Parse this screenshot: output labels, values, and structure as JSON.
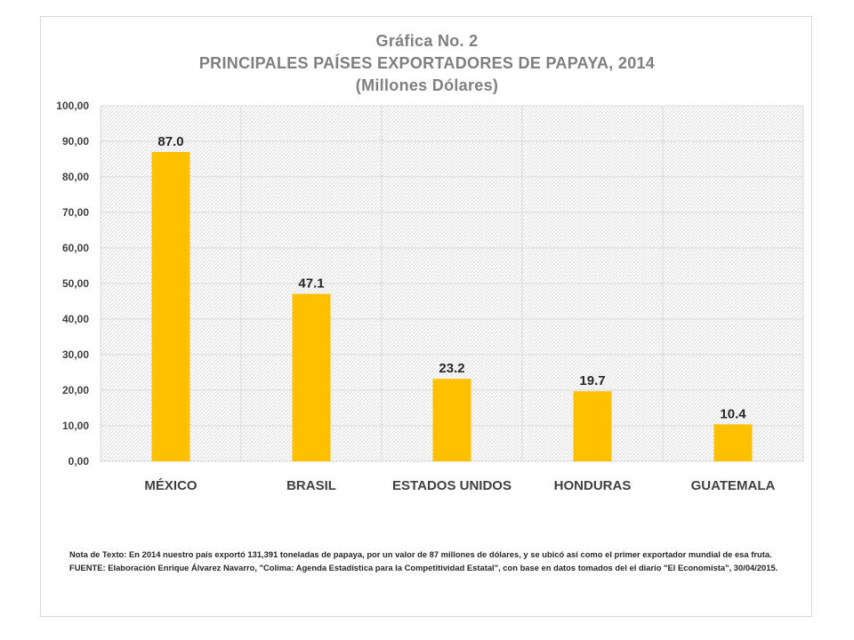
{
  "chart_data": {
    "type": "bar",
    "title": "Gráfica No. 2",
    "subtitle": "PRINCIPALES PAÍSES EXPORTADORES DE PAPAYA,  2014",
    "unit_label": "(Millones Dólares)",
    "categories": [
      "MÉXICO",
      "BRASIL",
      "ESTADOS UNIDOS",
      "HONDURAS",
      "GUATEMALA"
    ],
    "values": [
      87.0,
      47.1,
      23.2,
      19.7,
      10.4
    ],
    "data_labels": [
      "87.0",
      "47.1",
      "23.2",
      "19.7",
      "10.4"
    ],
    "y_ticks": [
      "0,00",
      "10,00",
      "20,00",
      "30,00",
      "40,00",
      "50,00",
      "60,00",
      "70,00",
      "80,00",
      "90,00",
      "100,00"
    ],
    "ylim": [
      0,
      100
    ],
    "grid": true,
    "bar_color": "#FFC000",
    "xlabel": "",
    "ylabel": ""
  },
  "notes": {
    "nota": "Nota de Texto: En 2014 nuestro país exportó 131,391 toneladas de papaya, por un valor de 87 millones de dólares, y se ubicó así como el primer exportador mundial de esa fruta.",
    "fuente": "FUENTE: Elaboración Enrique Álvarez Navarro, \"Colima: Agenda Estadística para la Competitividad Estatal\", con base en datos tomados del el diario \"El Economista\", 30/04/2015."
  }
}
